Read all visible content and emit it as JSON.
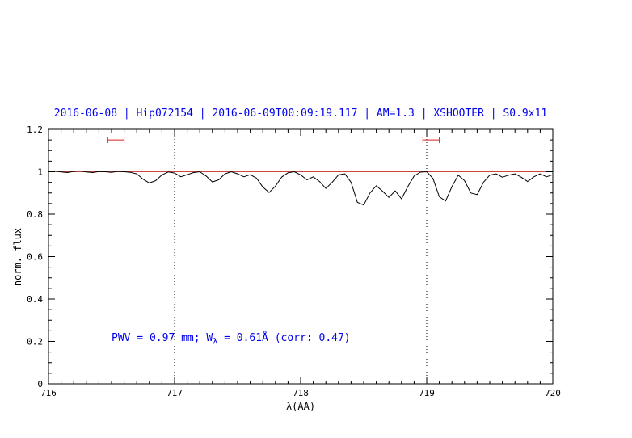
{
  "colors": {
    "title": "#0000ee",
    "annotation": "#0000ee",
    "spectrum": "#000000",
    "continuum": "#cc4444",
    "marker": "#dd2222",
    "vline": "#000000",
    "background": "#ffffff"
  },
  "title": {
    "text": "2016-06-08 | Hip072154 | 2016-06-09T00:09:19.117 | AM=1.3 | XSHOOTER | S0.9x11"
  },
  "annotation": {
    "part1": "PWV = 0.97 mm; W",
    "sub": "λ",
    "part2": " = 0.61Å (corr: 0.47)"
  },
  "chart_data": {
    "type": "line",
    "title": "2016-06-08 | Hip072154 | 2016-06-09T00:09:19.117 | AM=1.3 | XSHOOTER | S0.9x11",
    "xlabel": "λ(AA)",
    "ylabel": "norm. flux",
    "xlim": [
      716,
      720
    ],
    "ylim": [
      0,
      1.2
    ],
    "x_ticks": [
      716,
      717,
      718,
      719,
      720
    ],
    "x_tick_labels": [
      "716",
      "717",
      "718",
      "719",
      "720"
    ],
    "y_ticks": [
      0,
      0.2,
      0.4,
      0.6,
      0.8,
      1,
      1.2
    ],
    "y_tick_labels": [
      "0",
      "0.2",
      "0.4",
      "0.6",
      "0.8",
      "1",
      "1.2"
    ],
    "x_minor_step": 0.1,
    "y_minor_step": 0.05,
    "grid": false,
    "legend": false,
    "vlines": [
      717,
      719
    ],
    "continuum_y": 1.0,
    "markers": [
      {
        "x1": 716.47,
        "x2": 716.6,
        "y": 1.15
      },
      {
        "x1": 718.97,
        "x2": 719.1,
        "y": 1.15
      }
    ],
    "series": [
      {
        "name": "spectrum",
        "points": [
          [
            716.0,
            1.0
          ],
          [
            716.05,
            1.004
          ],
          [
            716.1,
            0.999
          ],
          [
            716.15,
            0.996
          ],
          [
            716.2,
            1.002
          ],
          [
            716.25,
            1.004
          ],
          [
            716.3,
            0.999
          ],
          [
            716.35,
            0.996
          ],
          [
            716.4,
            1.001
          ],
          [
            716.45,
            1.0
          ],
          [
            716.5,
            0.997
          ],
          [
            716.55,
            1.002
          ],
          [
            716.6,
            1.0
          ],
          [
            716.65,
            0.997
          ],
          [
            716.7,
            0.99
          ],
          [
            716.75,
            0.965
          ],
          [
            716.8,
            0.947
          ],
          [
            716.85,
            0.958
          ],
          [
            716.9,
            0.985
          ],
          [
            716.95,
            0.999
          ],
          [
            717.0,
            0.994
          ],
          [
            717.05,
            0.976
          ],
          [
            717.1,
            0.986
          ],
          [
            717.15,
            0.996
          ],
          [
            717.2,
            1.0
          ],
          [
            717.25,
            0.98
          ],
          [
            717.3,
            0.952
          ],
          [
            717.35,
            0.962
          ],
          [
            717.4,
            0.99
          ],
          [
            717.45,
            1.0
          ],
          [
            717.5,
            0.99
          ],
          [
            717.55,
            0.976
          ],
          [
            717.6,
            0.986
          ],
          [
            717.65,
            0.97
          ],
          [
            717.7,
            0.928
          ],
          [
            717.75,
            0.902
          ],
          [
            717.8,
            0.932
          ],
          [
            717.85,
            0.975
          ],
          [
            717.9,
            0.995
          ],
          [
            717.95,
            1.0
          ],
          [
            718.0,
            0.985
          ],
          [
            718.05,
            0.962
          ],
          [
            718.1,
            0.976
          ],
          [
            718.15,
            0.954
          ],
          [
            718.2,
            0.921
          ],
          [
            718.25,
            0.95
          ],
          [
            718.3,
            0.985
          ],
          [
            718.35,
            0.99
          ],
          [
            718.4,
            0.95
          ],
          [
            718.45,
            0.856
          ],
          [
            718.5,
            0.843
          ],
          [
            718.55,
            0.9
          ],
          [
            718.6,
            0.934
          ],
          [
            718.65,
            0.908
          ],
          [
            718.7,
            0.879
          ],
          [
            718.75,
            0.91
          ],
          [
            718.8,
            0.872
          ],
          [
            718.85,
            0.93
          ],
          [
            718.9,
            0.98
          ],
          [
            718.95,
            0.998
          ],
          [
            719.0,
            1.0
          ],
          [
            719.05,
            0.968
          ],
          [
            719.1,
            0.882
          ],
          [
            719.15,
            0.862
          ],
          [
            719.2,
            0.93
          ],
          [
            719.25,
            0.984
          ],
          [
            719.3,
            0.958
          ],
          [
            719.35,
            0.9
          ],
          [
            719.4,
            0.892
          ],
          [
            719.45,
            0.95
          ],
          [
            719.5,
            0.984
          ],
          [
            719.55,
            0.99
          ],
          [
            719.6,
            0.974
          ],
          [
            719.65,
            0.984
          ],
          [
            719.7,
            0.99
          ],
          [
            719.75,
            0.974
          ],
          [
            719.8,
            0.954
          ],
          [
            719.85,
            0.976
          ],
          [
            719.9,
            0.99
          ],
          [
            719.95,
            0.976
          ],
          [
            720.0,
            0.986
          ]
        ]
      }
    ]
  }
}
